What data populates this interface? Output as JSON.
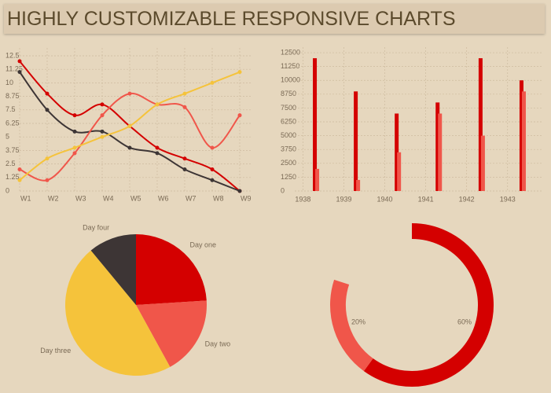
{
  "header": {
    "title": "HIGHLY CUSTOMIZABLE RESPONSIVE CHARTS"
  },
  "chart_data": [
    {
      "type": "line",
      "categories": [
        "W1",
        "W2",
        "W3",
        "W4",
        "W5",
        "W6",
        "W7",
        "W8",
        "W9"
      ],
      "ylim": [
        0,
        12.5
      ],
      "yticks": [
        0,
        1.25,
        2.5,
        3.75,
        5,
        6.25,
        7.5,
        8.75,
        10,
        11.25,
        12.5
      ],
      "grid": true,
      "series": [
        {
          "color": "#d40000",
          "values": [
            12,
            9,
            7,
            8,
            6,
            4,
            3,
            2,
            0
          ]
        },
        {
          "color": "#3d3535",
          "values": [
            11,
            7.5,
            5.5,
            5.5,
            4,
            3.5,
            2,
            1,
            0
          ]
        },
        {
          "color": "#f0564a",
          "values": [
            2,
            1,
            3.5,
            7,
            9,
            8,
            7.75,
            4,
            7
          ]
        },
        {
          "color": "#f5c33b",
          "values": [
            1,
            3,
            4,
            5,
            6,
            8,
            9,
            10,
            11
          ]
        }
      ]
    },
    {
      "type": "bar",
      "x": [
        1938.3,
        1939.3,
        1940.3,
        1941.3,
        1942.35,
        1943.35
      ],
      "xlim": [
        1937.8,
        1943.85
      ],
      "xticks": [
        1938,
        1939,
        1940,
        1941,
        1942,
        1943
      ],
      "ylim": [
        0,
        13000
      ],
      "yticks": [
        0,
        1250,
        2500,
        3750,
        5000,
        6250,
        7500,
        8750,
        10000,
        11250,
        12500
      ],
      "grid": true,
      "series": [
        {
          "color": "#d40000",
          "values": [
            12000,
            9000,
            7000,
            8000,
            12000,
            10000
          ]
        },
        {
          "color": "#f0564a",
          "values": [
            2000,
            1000,
            3500,
            7000,
            5000,
            9000
          ]
        }
      ]
    },
    {
      "type": "pie",
      "categories": [
        "Day one",
        "Day two",
        "Day three",
        "Day four"
      ],
      "values": [
        24,
        18,
        47,
        11
      ],
      "colors": [
        "#d40000",
        "#f0564a",
        "#f5c33b",
        "#3d3535"
      ]
    },
    {
      "type": "donut",
      "values": [
        60,
        20
      ],
      "value_labels": [
        "60%",
        "20%"
      ],
      "colors": [
        "#d40000",
        "#f0564a"
      ]
    }
  ]
}
